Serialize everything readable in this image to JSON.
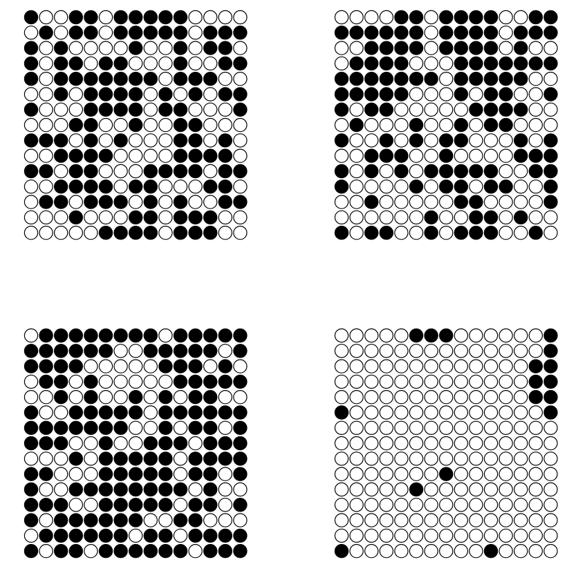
{
  "colors": {
    "filled": "#000000",
    "empty": "#ffffff",
    "stroke": "#000000",
    "background": "#ffffff"
  },
  "panels": [
    {
      "id": "panel-tl",
      "grid": [
        "100110111110000",
        "010110111110111",
        "101000010010110",
        "101101100010011",
        "101111111011100",
        "001011110101011",
        "100011110110001",
        "000110010011000",
        "111010100011010",
        "001111000011110",
        "110110001111011",
        "001111011000110",
        "011011101010011",
        "000100011011100",
        "000001111011100"
      ]
    },
    {
      "id": "panel-tr",
      "grid": [
        "000011011110011",
        "111111011110111",
        "001111011110100",
        "011110001111111",
        "111111101111100",
        "111110001011001",
        "101100000111100",
        "010001001011000",
        "100101011000101",
        "001110010000111",
        "101010111110011",
        "100001011011001",
        "001000001100001",
        "000000100110100",
        "101100101110010"
      ]
    },
    {
      "id": "panel-bl",
      "grid": [
        "011111111011111",
        "111111001111101",
        "111100000111010",
        "011010000011111",
        "001010010101100",
        "100111110111111",
        "111111100101101",
        "111001001110111",
        "000101111101111",
        "110001111101101",
        "100111111110100",
        "111001111101101",
        "101111110011000",
        "011111101101111",
        "101101111110111"
      ]
    },
    {
      "id": "panel-br",
      "grid": [
        "000001110000001",
        "000000000000001",
        "000000000000011",
        "000000000000011",
        "000000000000011",
        "100000000000001",
        "000000000000000",
        "000000000000000",
        "000000000000000",
        "000000010000000",
        "000001000000000",
        "000000000000000",
        "000000000000000",
        "000000000000000",
        "100000000010000"
      ]
    }
  ]
}
